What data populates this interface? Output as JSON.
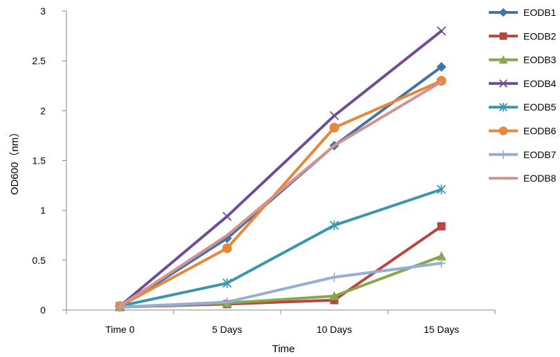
{
  "chart_data": {
    "type": "line",
    "title": "",
    "xlabel": "Time",
    "ylabel": "OD600（nm）",
    "categories": [
      "Time 0",
      "5 Days",
      "10 Days",
      "15 Days"
    ],
    "ylim": [
      0,
      3
    ],
    "yticks": [
      "0",
      "0.5",
      "1",
      "1.5",
      "2",
      "2.5",
      "3"
    ],
    "grid": false,
    "legend_position": "right",
    "series": [
      {
        "name": "EODB1",
        "values": [
          0.03,
          0.72,
          1.65,
          2.44
        ],
        "color": "#4472a8",
        "marker": "diamond"
      },
      {
        "name": "EODB2",
        "values": [
          0.03,
          0.06,
          0.1,
          0.84
        ],
        "color": "#b8453f",
        "marker": "square"
      },
      {
        "name": "EODB3",
        "values": [
          0.03,
          0.07,
          0.14,
          0.54
        ],
        "color": "#88a74a",
        "marker": "triangle"
      },
      {
        "name": "EODB4",
        "values": [
          0.04,
          0.94,
          1.95,
          2.8
        ],
        "color": "#6f4d96",
        "marker": "x"
      },
      {
        "name": "EODB5",
        "values": [
          0.04,
          0.27,
          0.85,
          1.21
        ],
        "color": "#3a97ab",
        "marker": "asterisk"
      },
      {
        "name": "EODB6",
        "values": [
          0.04,
          0.62,
          1.83,
          2.3
        ],
        "color": "#e8863a",
        "marker": "circle"
      },
      {
        "name": "EODB7",
        "values": [
          0.03,
          0.08,
          0.33,
          0.47
        ],
        "color": "#94aed6",
        "marker": "plus"
      },
      {
        "name": "EODB8",
        "values": [
          0.04,
          0.75,
          1.65,
          2.29
        ],
        "color": "#d39390",
        "marker": "none"
      }
    ]
  }
}
